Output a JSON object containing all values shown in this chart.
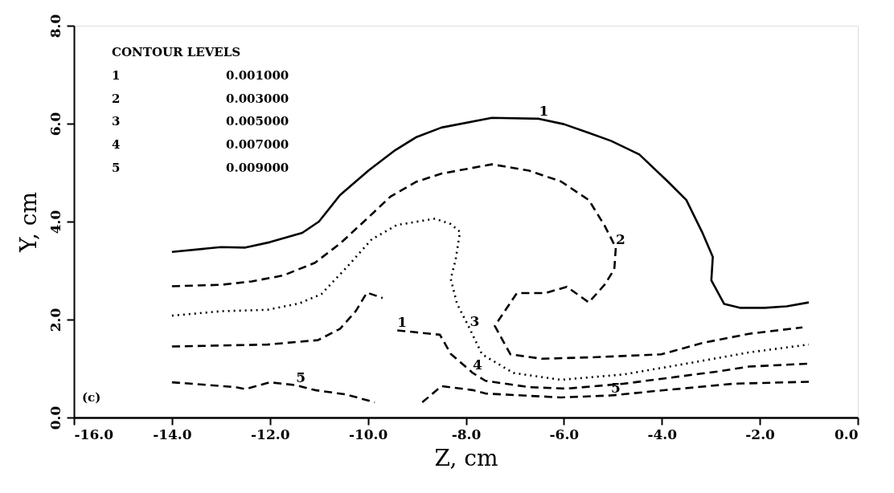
{
  "chart_data": {
    "type": "line",
    "xlabel": "Z, cm",
    "ylabel": "Y, cm",
    "legend_title": "CONTOUR LEVELS",
    "xlim": [
      -16,
      0
    ],
    "ylim": [
      0,
      8
    ],
    "xticks": [
      {
        "value": -16,
        "label": "-16.0"
      },
      {
        "value": -14,
        "label": "-14.0"
      },
      {
        "value": -12,
        "label": "-12.0"
      },
      {
        "value": -10,
        "label": "-10.0"
      },
      {
        "value": -8,
        "label": "-8.0"
      },
      {
        "value": -6,
        "label": "-6.0"
      },
      {
        "value": -4,
        "label": "-4.0"
      },
      {
        "value": -2,
        "label": "-2.0"
      },
      {
        "value": 0,
        "label": "0.0"
      }
    ],
    "yticks": [
      {
        "value": 0,
        "label": "0.0"
      },
      {
        "value": 2,
        "label": "2.0"
      },
      {
        "value": 4,
        "label": "4.0"
      },
      {
        "value": 6,
        "label": "6.0"
      },
      {
        "value": 8,
        "label": "8.0"
      }
    ],
    "grid": false,
    "legend": false,
    "marker": "none",
    "series": [
      {
        "color": "#000000",
        "line_style": "solid",
        "x": [
          -14,
          -13.0,
          -12.5,
          -12.0,
          -11.34,
          -11.0,
          -10.57,
          -9.98,
          -9.47,
          -9.02,
          -8.5,
          -7.47,
          -6.51,
          -6.0,
          -5.49,
          -5.04,
          -4.46,
          -3.88,
          -3.5,
          -3.18,
          -2.96,
          -2.99,
          -2.73,
          -2.41,
          -1.9,
          -1.45,
          -1.0
        ],
        "values": [
          3.38,
          3.48,
          3.47,
          3.58,
          3.77,
          4.0,
          4.54,
          5.05,
          5.44,
          5.72,
          5.92,
          6.12,
          6.1,
          5.99,
          5.81,
          5.65,
          5.37,
          4.82,
          4.44,
          3.79,
          3.28,
          2.8,
          2.32,
          2.24,
          2.24,
          2.27,
          2.35
        ]
      },
      {
        "color": "#000000",
        "line_style": "dashed",
        "x": [
          -14,
          -13,
          -12.37,
          -11.73,
          -11.08,
          -10.57,
          -10.05,
          -9.54,
          -9.02,
          -8.5,
          -7.47,
          -6.71,
          -6.06,
          -5.49,
          -5.17,
          -4.94,
          -4.97,
          -5.17,
          -5.49,
          -5.94,
          -6.38,
          -6.96,
          -7.41,
          -7.09,
          -6.45,
          -5.42,
          -4.01,
          -3.18,
          -2.22,
          -1.13
        ],
        "values": [
          2.68,
          2.71,
          2.78,
          2.9,
          3.16,
          3.55,
          4.03,
          4.51,
          4.81,
          4.98,
          5.17,
          5.04,
          4.82,
          4.44,
          3.92,
          3.47,
          3.03,
          2.71,
          2.35,
          2.67,
          2.54,
          2.54,
          1.87,
          1.29,
          1.2,
          1.23,
          1.29,
          1.52,
          1.71,
          1.84
        ]
      },
      {
        "color": "#000000",
        "line_style": "dotted",
        "x": [
          -14,
          -13,
          -12.05,
          -11.4,
          -10.95,
          -10.44,
          -9.92,
          -9.41,
          -8.63,
          -8.31,
          -8.12,
          -8.21,
          -8.31,
          -8.18,
          -7.92,
          -7.67,
          -7.03,
          -6.06,
          -4.78,
          -3.5,
          -2.22,
          -1.0
        ],
        "values": [
          2.08,
          2.17,
          2.2,
          2.33,
          2.52,
          3.06,
          3.64,
          3.93,
          4.06,
          3.95,
          3.79,
          3.22,
          2.83,
          2.32,
          1.81,
          1.29,
          0.91,
          0.77,
          0.88,
          1.1,
          1.33,
          1.49
        ]
      },
      {
        "color": "#000000",
        "line_style": "dashed",
        "x": [
          -14,
          -12.05,
          -11.02,
          -10.57,
          -10.25,
          -10.02,
          -9.7,
          -9.55,
          -9.4,
          -8.53,
          -8.31,
          -7.86,
          -7.6,
          -6.71,
          -5.94,
          -4.78,
          -2.86,
          -2.22,
          -1.0
        ],
        "values": [
          1.45,
          1.49,
          1.58,
          1.81,
          2.17,
          2.55,
          2.44,
          null,
          1.78,
          1.69,
          1.3,
          0.91,
          0.75,
          0.62,
          0.59,
          0.69,
          0.94,
          1.04,
          1.1
        ]
      },
      {
        "color": "#000000",
        "line_style": "dashed",
        "x": [
          -14,
          -12.7,
          -12.5,
          -12.0,
          -11.47,
          -11.08,
          -10.44,
          -9.86,
          -9.4,
          -8.89,
          -8.5,
          -7.86,
          -7.6,
          -6.06,
          -5.04,
          -4.14,
          -2.54,
          -1.0
        ],
        "values": [
          0.72,
          0.62,
          0.58,
          0.72,
          0.66,
          0.56,
          0.47,
          0.31,
          null,
          0.31,
          0.64,
          0.56,
          0.49,
          0.41,
          0.45,
          0.54,
          0.69,
          0.73
        ]
      }
    ],
    "annotations": [
      "1 0.001000",
      "2 0.003000",
      "3 0.005000",
      "4 0.007000",
      "5 0.009000",
      "(c)",
      {
        "text": "1",
        "x": -6.51,
        "y": 6.1
      },
      {
        "text": "2",
        "x": -4.94,
        "y": 3.47
      },
      {
        "text": "3",
        "x": -7.92,
        "y": 1.81
      },
      {
        "text": "4",
        "x": -7.86,
        "y": 0.91
      },
      {
        "text": "1",
        "x": -9.4,
        "y": 1.78
      },
      {
        "text": "5",
        "x": -11.47,
        "y": 0.66
      },
      {
        "text": "5",
        "x": -5.04,
        "y": 0.45
      }
    ]
  }
}
